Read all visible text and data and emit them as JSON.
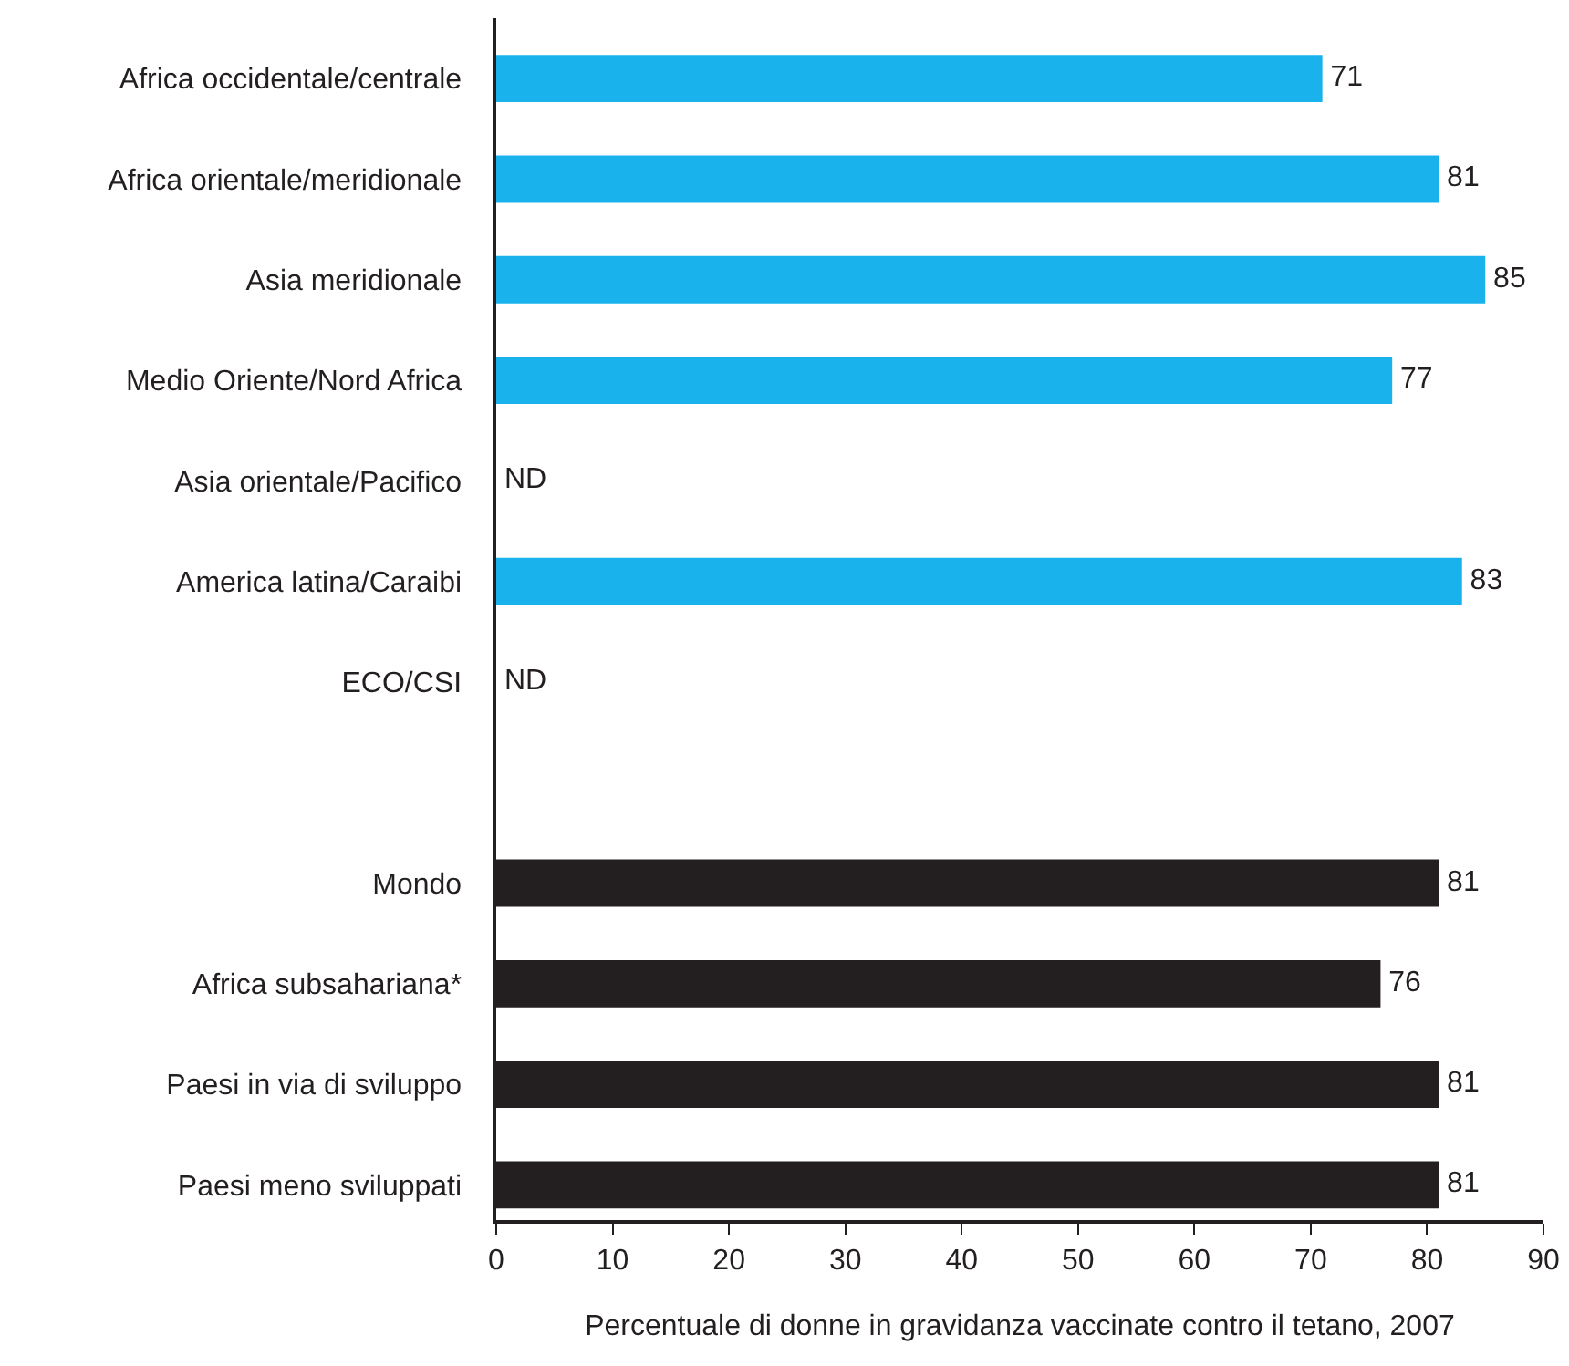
{
  "chart_data": {
    "type": "bar",
    "orientation": "horizontal",
    "xlabel": "Percentuale di donne in gravidanza vaccinate contro il tetano, 2007",
    "categories": [
      "Africa occidentale/centrale",
      "Africa orientale/meridionale",
      "Asia meridionale",
      "Medio Oriente/Nord Africa",
      "Asia orientale/Pacifico",
      "America latina/Caraibi",
      "ECO/CSI",
      null,
      "Mondo",
      "Africa subsahariana*",
      "Paesi in via di sviluppo",
      "Paesi meno sviluppati"
    ],
    "values": [
      71,
      81,
      85,
      77,
      null,
      83,
      null,
      null,
      81,
      76,
      81,
      81
    ],
    "value_labels": [
      "71",
      "81",
      "85",
      "77",
      "ND",
      "83",
      "ND",
      null,
      "81",
      "76",
      "81",
      "81"
    ],
    "colors": [
      "#1ab2ec",
      "#1ab2ec",
      "#1ab2ec",
      "#1ab2ec",
      "#1ab2ec",
      "#1ab2ec",
      "#1ab2ec",
      "#231f20",
      "#231f20",
      "#231f20",
      "#231f20",
      "#231f20"
    ],
    "xlim": [
      0,
      90
    ],
    "xticks": [
      0,
      10,
      20,
      30,
      40,
      50,
      60,
      70,
      80,
      90
    ],
    "grid": false
  }
}
